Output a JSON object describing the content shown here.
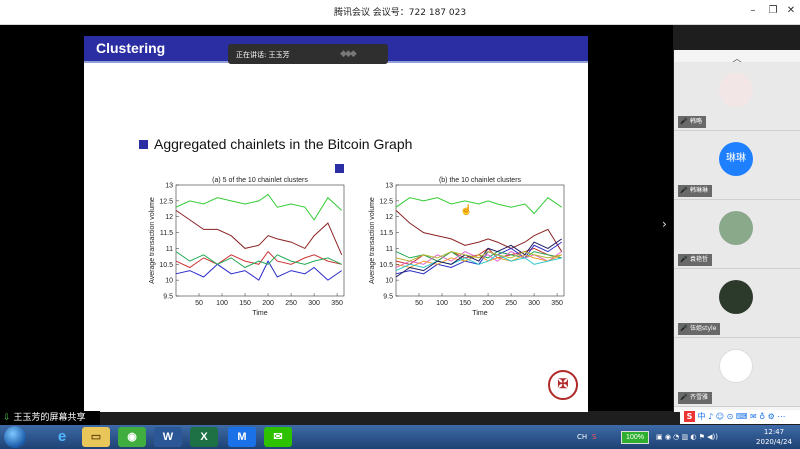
{
  "window": {
    "title": "腾讯会议 会议号：722 187 023"
  },
  "slide": {
    "title": "Clustering",
    "bullet": "Aggregated chainlets in the Bitcoin Graph"
  },
  "speaker_popup": {
    "label": "正在讲话: 王玉芳",
    "badge": "◆◆◆"
  },
  "colors": {
    "slide_header": "#2a2ea2",
    "accent": "#2a2ea2"
  },
  "chart_data": [
    {
      "type": "line",
      "title": "(a) 5 of the 10 chainlet clusters",
      "xlabel": "Time",
      "ylabel": "Average transaction volume",
      "xlim": [
        0,
        365
      ],
      "ylim": [
        9.5,
        13
      ],
      "xticks": [
        50,
        100,
        150,
        200,
        250,
        300,
        350
      ],
      "yticks": [
        9.5,
        10,
        10.5,
        11,
        11.5,
        12,
        12.5,
        13
      ],
      "ytick_labels": [
        "9.5",
        "10",
        "10.5",
        "11",
        "11.5",
        "12",
        "12.5",
        "13"
      ],
      "series": [
        {
          "color": "#33cc33",
          "x": [
            0,
            30,
            60,
            90,
            120,
            150,
            180,
            200,
            220,
            250,
            280,
            300,
            330,
            360
          ],
          "values": [
            12.3,
            12.5,
            12.4,
            12.6,
            12.5,
            12.4,
            12.5,
            12.7,
            12.3,
            12.4,
            12.3,
            11.9,
            12.6,
            12.2
          ]
        },
        {
          "color": "#8b2323",
          "x": [
            0,
            30,
            60,
            90,
            120,
            150,
            180,
            200,
            220,
            250,
            280,
            300,
            330,
            360
          ],
          "values": [
            12.2,
            11.9,
            11.6,
            11.6,
            11.4,
            11.0,
            11.1,
            11.4,
            11.3,
            11.2,
            11.0,
            11.4,
            11.8,
            10.8
          ]
        },
        {
          "color": "#cc3333",
          "x": [
            0,
            30,
            60,
            90,
            120,
            150,
            180,
            200,
            220,
            250,
            280,
            300,
            330,
            360
          ],
          "values": [
            10.6,
            10.4,
            10.7,
            10.5,
            10.8,
            10.6,
            10.5,
            10.9,
            10.6,
            10.5,
            10.7,
            10.8,
            10.6,
            10.5
          ]
        },
        {
          "color": "#2a2ac8",
          "x": [
            0,
            30,
            60,
            90,
            120,
            150,
            180,
            200,
            220,
            250,
            280,
            300,
            330,
            360
          ],
          "values": [
            10.2,
            10.3,
            10.1,
            10.5,
            10.2,
            10.3,
            10.0,
            10.6,
            10.1,
            10.3,
            10.2,
            10.4,
            10.0,
            10.3
          ]
        },
        {
          "color": "#22aa55",
          "x": [
            0,
            30,
            60,
            90,
            120,
            150,
            180,
            200,
            220,
            250,
            280,
            300,
            330,
            360
          ],
          "values": [
            10.9,
            10.6,
            10.8,
            10.5,
            10.7,
            10.4,
            10.6,
            10.5,
            10.8,
            10.6,
            10.5,
            10.6,
            10.7,
            10.5
          ]
        }
      ]
    },
    {
      "type": "line",
      "title": "(b) the 10 chainlet clusters",
      "xlabel": "Time",
      "ylabel": "Average transaction volume",
      "xlim": [
        0,
        365
      ],
      "ylim": [
        9.5,
        13
      ],
      "xticks": [
        50,
        100,
        150,
        200,
        250,
        300,
        350
      ],
      "yticks": [
        9.5,
        10,
        10.5,
        11,
        11.5,
        12,
        12.5,
        13
      ],
      "ytick_labels": [
        "9.5",
        "10",
        "10.5",
        "11",
        "11.5",
        "12",
        "12.5",
        "13"
      ],
      "series": [
        {
          "color": "#33cc33",
          "x": [
            0,
            30,
            60,
            90,
            120,
            150,
            180,
            200,
            220,
            250,
            280,
            300,
            330,
            360
          ],
          "values": [
            12.3,
            12.6,
            12.5,
            12.6,
            12.4,
            12.5,
            12.4,
            12.5,
            12.4,
            12.3,
            12.4,
            12.1,
            12.6,
            12.3
          ]
        },
        {
          "color": "#8b2323",
          "x": [
            0,
            30,
            60,
            90,
            120,
            150,
            180,
            200,
            220,
            250,
            280,
            300,
            330,
            360
          ],
          "values": [
            12.2,
            11.8,
            11.5,
            11.4,
            11.3,
            11.1,
            11.2,
            11.3,
            11.2,
            11.0,
            11.2,
            11.4,
            11.6,
            10.9
          ]
        },
        {
          "color": "#cc3333",
          "x": [
            0,
            30,
            60,
            90,
            120,
            150,
            180,
            200,
            220,
            250,
            280,
            300,
            330,
            360
          ],
          "values": [
            10.6,
            10.5,
            10.8,
            10.6,
            10.9,
            10.7,
            10.8,
            11.0,
            10.7,
            10.8,
            10.9,
            11.0,
            10.8,
            10.7
          ]
        },
        {
          "color": "#2a2ac8",
          "x": [
            0,
            30,
            60,
            90,
            120,
            150,
            180,
            200,
            220,
            250,
            280,
            300,
            330,
            360
          ],
          "values": [
            10.2,
            10.3,
            10.2,
            10.5,
            10.4,
            10.6,
            10.5,
            10.9,
            10.8,
            11.0,
            10.7,
            11.1,
            10.9,
            11.2
          ]
        },
        {
          "color": "#22aa55",
          "x": [
            0,
            30,
            60,
            90,
            120,
            150,
            180,
            200,
            220,
            250,
            280,
            300,
            330,
            360
          ],
          "values": [
            10.9,
            10.7,
            10.8,
            10.6,
            10.9,
            10.6,
            10.8,
            10.7,
            10.9,
            10.8,
            10.7,
            10.9,
            10.8,
            10.7
          ]
        },
        {
          "color": "#e066cc",
          "x": [
            0,
            30,
            60,
            90,
            120,
            150,
            180,
            200,
            220,
            250,
            280,
            300,
            330,
            360
          ],
          "values": [
            10.4,
            10.6,
            10.5,
            10.8,
            10.6,
            10.9,
            10.7,
            10.8,
            10.6,
            10.9,
            10.7,
            10.8,
            10.6,
            10.9
          ]
        },
        {
          "color": "#f0a030",
          "x": [
            0,
            30,
            60,
            90,
            120,
            150,
            180,
            200,
            220,
            250,
            280,
            300,
            330,
            360
          ],
          "values": [
            10.5,
            10.4,
            10.6,
            10.5,
            10.7,
            10.6,
            10.8,
            10.6,
            10.7,
            10.6,
            10.8,
            10.7,
            10.6,
            10.8
          ]
        },
        {
          "color": "#30c8d0",
          "x": [
            0,
            30,
            60,
            90,
            120,
            150,
            180,
            200,
            220,
            250,
            280,
            300,
            330,
            360
          ],
          "values": [
            10.3,
            10.5,
            10.4,
            10.6,
            10.5,
            10.7,
            10.5,
            10.6,
            10.8,
            10.6,
            10.7,
            10.5,
            10.6,
            10.7
          ]
        },
        {
          "color": "#1a1a60",
          "x": [
            0,
            30,
            60,
            90,
            120,
            150,
            180,
            200,
            220,
            250,
            280,
            300,
            330,
            360
          ],
          "values": [
            10.1,
            10.4,
            10.3,
            10.6,
            10.5,
            10.8,
            10.6,
            11.0,
            10.9,
            11.1,
            10.8,
            11.2,
            11.0,
            11.3
          ]
        },
        {
          "color": "#b8b830",
          "x": [
            0,
            30,
            60,
            90,
            120,
            150,
            180,
            200,
            220,
            250,
            280,
            300,
            330,
            360
          ],
          "values": [
            10.7,
            10.6,
            10.8,
            10.7,
            10.9,
            10.8,
            10.7,
            10.9,
            10.8,
            10.7,
            10.9,
            10.8,
            10.7,
            10.8
          ]
        }
      ]
    }
  ],
  "participants": [
    {
      "name": "韩略",
      "avatar_text": "",
      "avatar_color": "#f2e6e6"
    },
    {
      "name": "韩琳琳",
      "avatar_text": "琳琳",
      "avatar_color": "#1e7fff"
    },
    {
      "name": "袁艳哲",
      "avatar_text": "",
      "avatar_color": "#8aa88a"
    },
    {
      "name": "伍姐style",
      "avatar_text": "",
      "avatar_color": "#2c3a2c"
    },
    {
      "name": "齐雪雅",
      "avatar_text": "",
      "avatar_color": "#ffffff"
    }
  ],
  "share_bar": {
    "label": "王玉芳的屏幕共享"
  },
  "taskbar": {
    "lang": "CH",
    "battery": "100%",
    "time": "12:47",
    "date": "2020/4/24"
  }
}
